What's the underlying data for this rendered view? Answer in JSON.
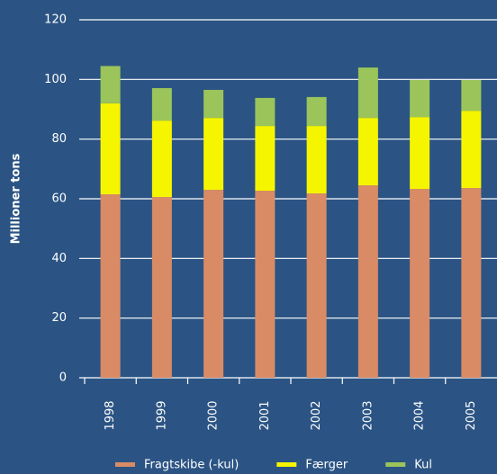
{
  "chart_data": {
    "type": "stacked-bar",
    "y_label": "Millioner tons",
    "categories": [
      "1998",
      "1999",
      "2000",
      "2001",
      "2002",
      "2003",
      "2004",
      "2005"
    ],
    "series": [
      {
        "name": "Fragtskibe (-kul)",
        "color": "#d98b65",
        "values": [
          61.5,
          60.6,
          63.0,
          62.7,
          61.8,
          64.5,
          63.3,
          63.6
        ]
      },
      {
        "name": "Færger",
        "color": "#f5f500",
        "values": [
          30.5,
          25.6,
          24.1,
          21.7,
          22.6,
          22.6,
          24.1,
          25.9
        ]
      },
      {
        "name": "Kul",
        "color": "#9bc45a",
        "values": [
          12.5,
          10.9,
          9.4,
          9.4,
          9.7,
          16.9,
          12.4,
          10.3
        ]
      }
    ],
    "ylim": [
      0,
      120
    ],
    "yticks": [
      0,
      20,
      40,
      60,
      80,
      100,
      120
    ],
    "grid": true
  }
}
